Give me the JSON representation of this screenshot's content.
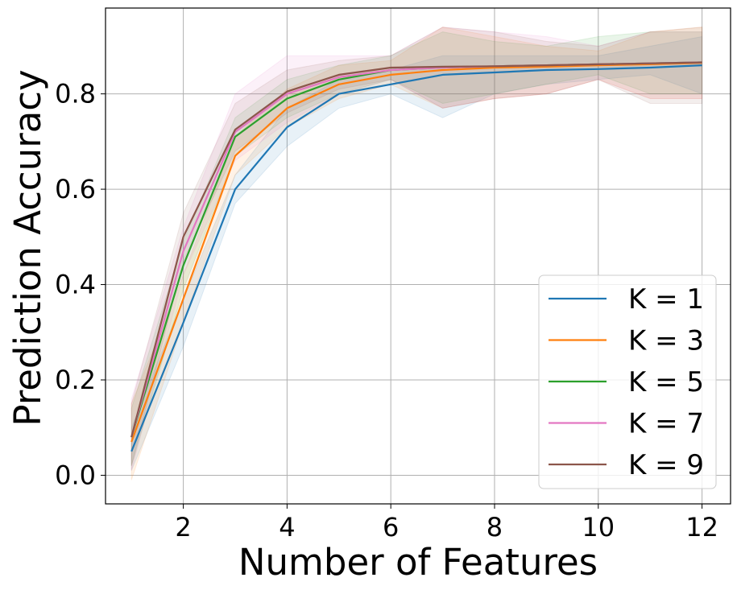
{
  "chart_data": {
    "type": "line",
    "title": "",
    "xlabel": "Number of Features",
    "ylabel": "Prediction Accuracy",
    "xlim": [
      0.5,
      12.55
    ],
    "ylim": [
      -0.06,
      0.98
    ],
    "x_ticks": [
      2,
      4,
      6,
      8,
      10,
      12
    ],
    "y_ticks": [
      0.0,
      0.2,
      0.4,
      0.6,
      0.8
    ],
    "x_tick_labels": [
      "2",
      "4",
      "6",
      "8",
      "10",
      "12"
    ],
    "y_tick_labels": [
      "0.0",
      "0.2",
      "0.4",
      "0.6",
      "0.8"
    ],
    "grid": true,
    "legend_position": "lower-right",
    "x": [
      1,
      2,
      3,
      4,
      5,
      6,
      7,
      8,
      9,
      10,
      11,
      12
    ],
    "series": [
      {
        "name": "K = 1",
        "color": "#1f77b4",
        "values": [
          0.05,
          0.32,
          0.6,
          0.73,
          0.8,
          0.82,
          0.84,
          0.845,
          0.85,
          0.852,
          0.855,
          0.86
        ],
        "lower": [
          0.01,
          0.27,
          0.57,
          0.69,
          0.77,
          0.8,
          0.75,
          0.8,
          0.82,
          0.83,
          0.84,
          0.8
        ],
        "upper": [
          0.1,
          0.37,
          0.63,
          0.77,
          0.83,
          0.85,
          0.88,
          0.88,
          0.88,
          0.88,
          0.9,
          0.92
        ]
      },
      {
        "name": "K = 3",
        "color": "#ff7f0e",
        "values": [
          0.07,
          0.37,
          0.67,
          0.77,
          0.82,
          0.84,
          0.85,
          0.855,
          0.857,
          0.86,
          0.862,
          0.865
        ],
        "lower": [
          -0.01,
          0.32,
          0.63,
          0.73,
          0.79,
          0.82,
          0.77,
          0.79,
          0.8,
          0.83,
          0.79,
          0.79
        ],
        "upper": [
          0.15,
          0.42,
          0.71,
          0.81,
          0.86,
          0.87,
          0.94,
          0.92,
          0.9,
          0.89,
          0.93,
          0.94
        ]
      },
      {
        "name": "K = 5",
        "color": "#2ca02c",
        "values": [
          0.08,
          0.44,
          0.71,
          0.79,
          0.83,
          0.85,
          0.855,
          0.858,
          0.86,
          0.862,
          0.864,
          0.866
        ],
        "lower": [
          0.02,
          0.39,
          0.67,
          0.75,
          0.8,
          0.83,
          0.78,
          0.8,
          0.82,
          0.84,
          0.8,
          0.8
        ],
        "upper": [
          0.14,
          0.49,
          0.75,
          0.83,
          0.86,
          0.88,
          0.93,
          0.91,
          0.9,
          0.92,
          0.93,
          0.93
        ]
      },
      {
        "name": "K = 7",
        "color": "#e377c2",
        "values": [
          0.08,
          0.47,
          0.72,
          0.8,
          0.835,
          0.85,
          0.855,
          0.858,
          0.86,
          0.862,
          0.864,
          0.866
        ],
        "lower": [
          0.01,
          0.42,
          0.66,
          0.74,
          0.8,
          0.83,
          0.77,
          0.79,
          0.8,
          0.83,
          0.79,
          0.79
        ],
        "upper": [
          0.16,
          0.52,
          0.8,
          0.88,
          0.88,
          0.88,
          0.94,
          0.93,
          0.92,
          0.9,
          0.93,
          0.93
        ]
      },
      {
        "name": "K = 9",
        "color": "#8c564b",
        "values": [
          0.08,
          0.5,
          0.725,
          0.805,
          0.84,
          0.855,
          0.857,
          0.858,
          0.86,
          0.862,
          0.864,
          0.866
        ],
        "lower": [
          0.02,
          0.45,
          0.68,
          0.76,
          0.81,
          0.83,
          0.77,
          0.79,
          0.8,
          0.83,
          0.78,
          0.78
        ],
        "upper": [
          0.15,
          0.55,
          0.78,
          0.85,
          0.87,
          0.88,
          0.94,
          0.93,
          0.91,
          0.9,
          0.93,
          0.94
        ]
      }
    ]
  }
}
